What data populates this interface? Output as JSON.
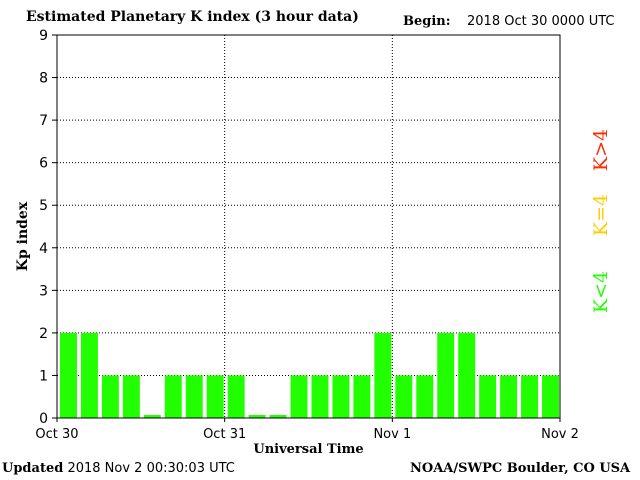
{
  "header": {
    "title": "Estimated Planetary K index (3 hour data)",
    "begin_label": "Begin:",
    "begin_value": "2018 Oct 30 0000 UTC"
  },
  "footer": {
    "updated_label": "Updated",
    "updated_value": "2018 Nov  2 00:30:03 UTC",
    "credit": "NOAA/SWPC Boulder, CO USA"
  },
  "legend": [
    {
      "label": "K>4",
      "color": "#ff2a00"
    },
    {
      "label": "K=4",
      "color": "#ffcc00"
    },
    {
      "label": "K<4",
      "color": "#22ff00"
    }
  ],
  "chart_data": {
    "type": "bar",
    "title": "Estimated Planetary K index (3 hour data)",
    "xlabel": "Universal Time",
    "ylabel": "Kp index",
    "ylim": [
      0,
      9
    ],
    "yticks": [
      "0",
      "1",
      "2",
      "3",
      "4",
      "5",
      "6",
      "7",
      "8",
      "9"
    ],
    "xticks": [
      "Oct 30",
      "Oct 31",
      "Nov 1",
      "Nov 2"
    ],
    "grid": true,
    "bar_color": "#22ff00",
    "values": [
      2,
      2,
      1,
      1,
      0.07,
      1,
      1,
      1,
      1,
      0.07,
      0.07,
      1,
      1,
      1,
      1,
      2,
      1,
      1,
      2,
      2,
      1,
      1,
      1,
      1
    ]
  }
}
